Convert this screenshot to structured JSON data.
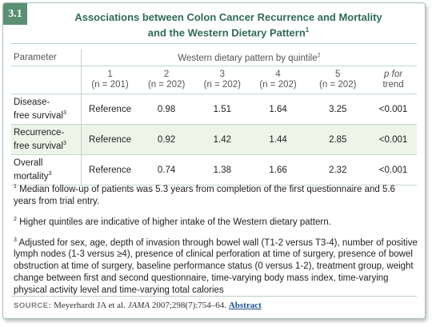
{
  "badge": "3.1",
  "title_line1": "Associations between Colon Cancer Recurrence and Mortality",
  "title_line2": "and the Western Dietary Pattern",
  "title_sup": "1",
  "table": {
    "param_header": "Parameter",
    "group_header": "Western dietary pattern by quintile",
    "group_sup": "2",
    "quintiles": [
      {
        "q": "1",
        "n": "(n = 201)"
      },
      {
        "q": "2",
        "n": "(n = 202)"
      },
      {
        "q": "3",
        "n": "(n = 202)"
      },
      {
        "q": "4",
        "n": "(n = 202)"
      },
      {
        "q": "5",
        "n": "(n = 202)"
      }
    ],
    "ptrend_l1": "p for",
    "ptrend_l2": "trend",
    "rows": [
      {
        "l1": "Disease-",
        "l2": "free survival",
        "sup": "3",
        "v": [
          "Reference",
          "0.98",
          "1.51",
          "1.64",
          "3.25",
          "<0.001"
        ]
      },
      {
        "l1": "Recurrence-",
        "l2": "free survival",
        "sup": "3",
        "v": [
          "Reference",
          "0.92",
          "1.42",
          "1.44",
          "2.85",
          "<0.001"
        ]
      },
      {
        "l1": "Overall",
        "l2": "mortality",
        "sup": "3",
        "v": [
          "Reference",
          "0.74",
          "1.38",
          "1.66",
          "2.32",
          "<0.001"
        ]
      }
    ]
  },
  "notes": {
    "n1_sup": "1",
    "n1": "Median follow-up of patients was 5.3 years from completion of the first questionnaire and 5.6 years from trial entry.",
    "n2_sup": "2",
    "n2": "Higher quintiles are indicative of higher intake of the Western dietary pattern.",
    "n3_sup": "3",
    "n3": "Adjusted for sex, age, depth of invasion through bowel wall (T1-2 versus T3-4), number of positive lymph nodes (1-3 versus ≥4), presence of clinical perforation at time of surgery, presence of bowel obstruction at time of surgery, baseline performance status (0 versus 1-2), treatment group, weight change between first and second questionnaire, time-varying body mass index, time-varying physical activity level and time-varying total calories"
  },
  "source": {
    "label": "SOURCE:",
    "authors": "Meyerhardt JA et al.",
    "journal": "JAMA",
    "citation": "2007;298(7):754–64.",
    "link": "Abstract"
  }
}
